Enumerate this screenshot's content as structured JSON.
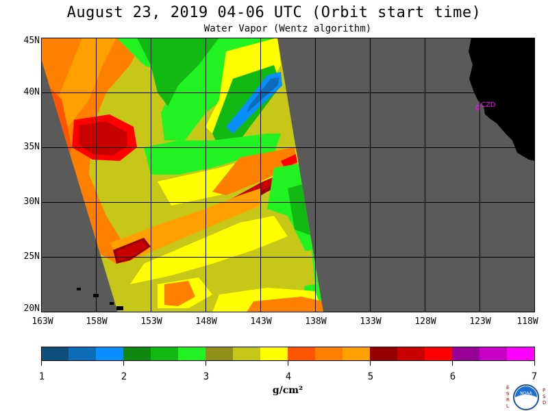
{
  "title": "August 23, 2019  04-06 UTC  (Orbit start time)",
  "subtitle": "Water Vapor (Wentz algorithm)",
  "lat_labels": [
    "45N",
    "40N",
    "35N",
    "30N",
    "25N",
    "20N"
  ],
  "lon_labels": [
    "163W",
    "158W",
    "153W",
    "148W",
    "143W",
    "138W",
    "133W",
    "128W",
    "123W",
    "118W"
  ],
  "station_label": "CZD",
  "colorbar": {
    "ticks": [
      "1",
      "2",
      "3",
      "4",
      "5",
      "6",
      "7"
    ],
    "units": "g/cm²",
    "colors": [
      "#0b4f7a",
      "#0d6cb8",
      "#0a8dff",
      "#0d8a0d",
      "#12b912",
      "#22f222",
      "#8f8f1a",
      "#c7c71a",
      "#ffff00",
      "#ff5500",
      "#ff7f00",
      "#ff9f00",
      "#960000",
      "#c80000",
      "#ff0000",
      "#960096",
      "#c800c8",
      "#ff00ff"
    ]
  },
  "logo": {
    "left_letters": [
      "E",
      "S",
      "R",
      "L"
    ],
    "right_letters": [
      "P",
      "S",
      "D"
    ],
    "center_text": "NOAA"
  },
  "colors": {
    "land": "#000000",
    "no_data": "#5a5a5a",
    "grid": "#000000",
    "station": "#ff00ff"
  }
}
